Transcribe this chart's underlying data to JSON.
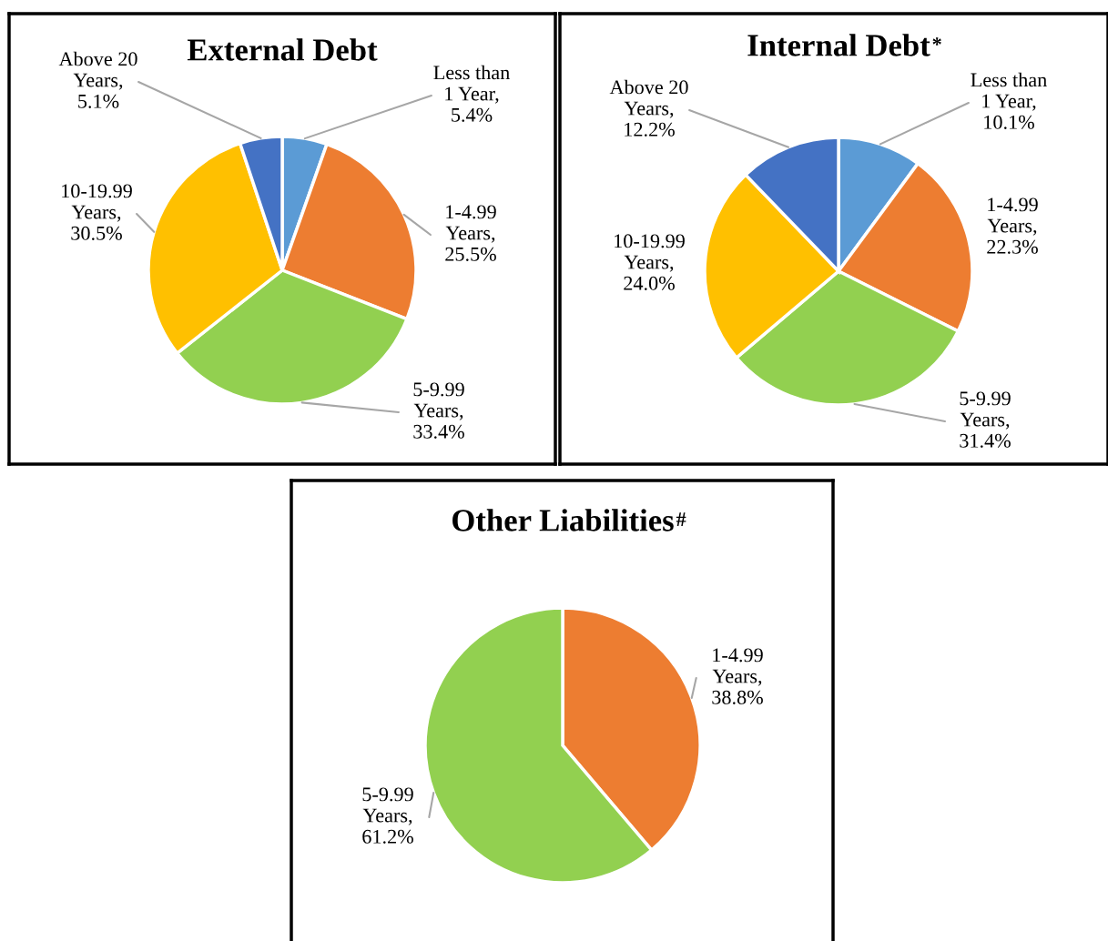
{
  "chart_data": [
    {
      "type": "pie",
      "title": "External Debt",
      "categories": [
        "Less than 1 Year",
        "1-4.99 Years",
        "5-9.99 Years",
        "10-19.99 Years",
        "Above 20 Years"
      ],
      "values": [
        5.4,
        25.5,
        33.4,
        30.5,
        5.1
      ],
      "value_labels": [
        ", 5.4%",
        ", 25.5%",
        ", 33.4%",
        ", 30.5%",
        ", 5.1%"
      ],
      "colors": [
        "#5b9bd5",
        "#ed7d31",
        "#92d050",
        "#ffc000",
        "#4472c4"
      ]
    },
    {
      "type": "pie",
      "title": "Internal Debt$^{*}$",
      "categories": [
        "Less than 1 Year",
        "1-4.99 Years",
        "5-9.99 Years",
        "10-19.99 Years",
        "Above 20 Years"
      ],
      "values": [
        10.1,
        22.3,
        31.4,
        24.0,
        12.2
      ],
      "value_labels": [
        ", 10.1%",
        ", 22.3%",
        ", 31.4%",
        ", 24.0%",
        ", 12.2%"
      ],
      "colors": [
        "#5b9bd5",
        "#ed7d31",
        "#92d050",
        "#ffc000",
        "#4472c4"
      ]
    },
    {
      "type": "pie",
      "title": "Other Liabilities$^{#}$",
      "categories": [
        "1-4.99 Years",
        "5-9.99 Years"
      ],
      "values": [
        38.8,
        61.2
      ],
      "value_labels": [
        ", 38.8%",
        ", 61.2%"
      ],
      "colors": [
        "#ed7d31",
        "#92d050"
      ]
    }
  ]
}
